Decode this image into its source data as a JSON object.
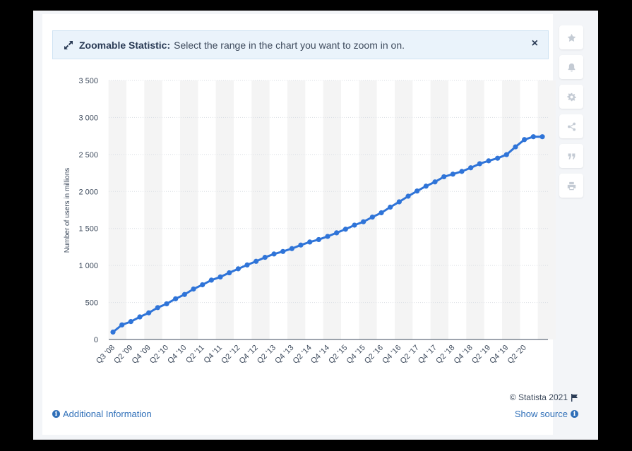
{
  "banner": {
    "title": "Zoomable Statistic:",
    "text": "Select the range in the chart you want to zoom in on.",
    "close_label": "×"
  },
  "tools": [
    "star-icon",
    "bell-icon",
    "gear-icon",
    "share-icon",
    "quote-icon",
    "print-icon"
  ],
  "footer": {
    "copyright": "© Statista 2021",
    "additional_info": "Additional Information",
    "show_source": "Show source"
  },
  "colors": {
    "line": "#2f74d8",
    "band": "#f4f4f4",
    "link": "#2f6fb8"
  },
  "chart_data": {
    "type": "line",
    "ylabel": "Number of users in millions",
    "ylim": [
      0,
      3500
    ],
    "yticks": [
      0,
      500,
      1000,
      1500,
      2000,
      2500,
      3000,
      3500
    ],
    "ytick_labels": [
      "0",
      "500",
      "1 000",
      "1 500",
      "2 000",
      "2 500",
      "3 000",
      "3 500"
    ],
    "categories": [
      "Q3 '08",
      "Q4 '08",
      "Q1 '09",
      "Q2 '09",
      "Q3 '09",
      "Q4 '09",
      "Q1 '10",
      "Q2 '10",
      "Q3 '10",
      "Q4 '10",
      "Q1 '11",
      "Q2 '11",
      "Q3 '11",
      "Q4 '11",
      "Q1 '12",
      "Q2 '12",
      "Q3 '12",
      "Q4 '12",
      "Q1 '13",
      "Q2 '13",
      "Q3 '13",
      "Q4 '13",
      "Q1 '14",
      "Q2 '14",
      "Q3 '14",
      "Q4 '14",
      "Q1 '15",
      "Q2 '15",
      "Q3 '15",
      "Q4 '15",
      "Q1 '16",
      "Q2 '16",
      "Q3 '16",
      "Q4 '16",
      "Q1 '17",
      "Q2 '17",
      "Q3 '17",
      "Q4 '17",
      "Q1 '18",
      "Q2 '18",
      "Q3 '18",
      "Q4 '18",
      "Q1 '19",
      "Q2 '19",
      "Q3 '19",
      "Q4 '19",
      "Q1 '20",
      "Q2 '20",
      "Q3 '20"
    ],
    "xtick_labels": [
      "Q3 '08",
      "Q2 '09",
      "Q4 '09",
      "Q2 '10",
      "Q4 '10",
      "Q2 '11",
      "Q4 '11",
      "Q2 '12",
      "Q4 '12",
      "Q2 '13",
      "Q4 '13",
      "Q2 '14",
      "Q4 '14",
      "Q2 '15",
      "Q4 '15",
      "Q2 '16",
      "Q4 '16",
      "Q2 '17",
      "Q4 '17",
      "Q2 '18",
      "Q4 '18",
      "Q2 '19",
      "Q4 '19",
      "Q2 '20"
    ],
    "values": [
      100,
      197,
      242,
      305,
      360,
      431,
      482,
      550,
      608,
      682,
      739,
      802,
      845,
      901,
      955,
      1007,
      1056,
      1110,
      1155,
      1189,
      1228,
      1276,
      1317,
      1350,
      1393,
      1441,
      1490,
      1545,
      1591,
      1654,
      1712,
      1788,
      1860,
      1936,
      2006,
      2072,
      2129,
      2199,
      2234,
      2271,
      2320,
      2375,
      2414,
      2449,
      2498,
      2603,
      2701,
      2740,
      2740
    ]
  }
}
